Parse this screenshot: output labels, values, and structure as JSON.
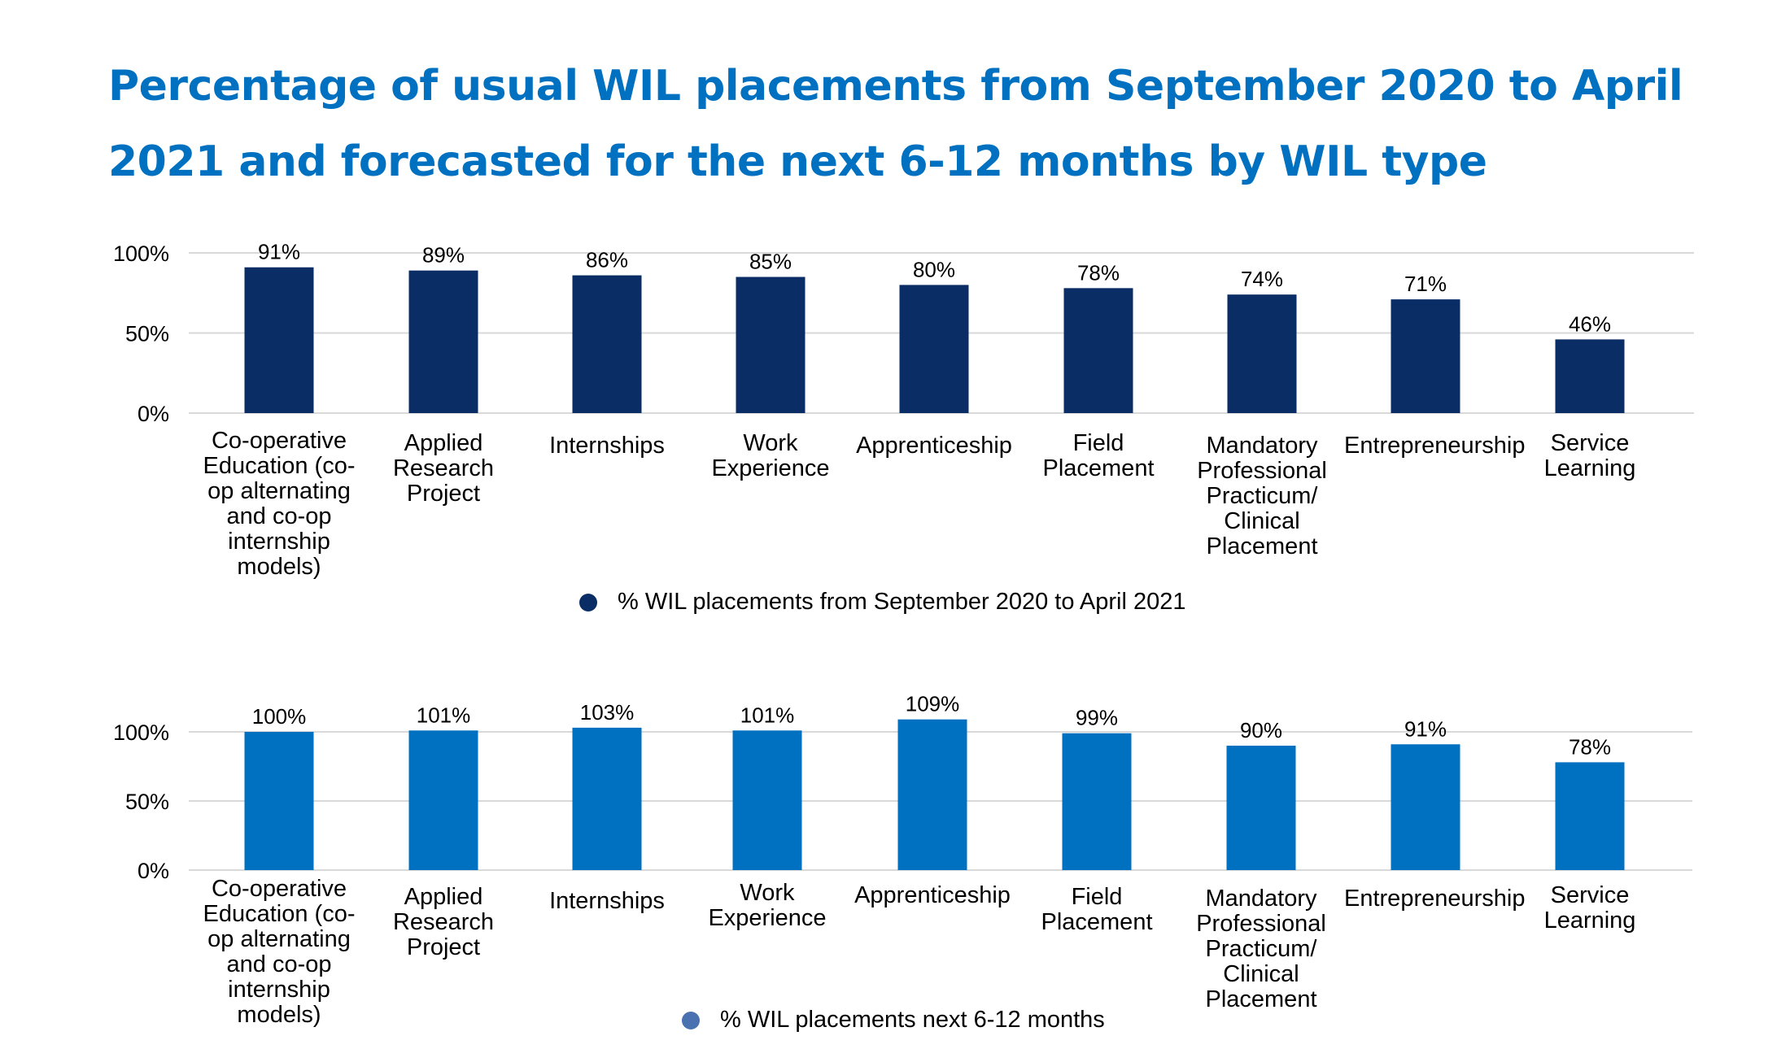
{
  "title": "Percentage   of usual WIL placements from September 2020 to April 2021 and forecasted for the next 6-12 months by WIL type",
  "chart_data": [
    {
      "type": "bar",
      "categories": [
        "Co-operative Education (co-op alternating and co-op internship models)",
        "Applied Research Project",
        "Internships",
        "Work Experience",
        "Apprenticeship",
        "Field Placement",
        "Mandatory Professional Practicum/ Clinical Placement",
        "Entrepreneurship",
        "Service Learning"
      ],
      "values": [
        91,
        89,
        86,
        85,
        80,
        78,
        74,
        71,
        46
      ],
      "data_labels": [
        "91%",
        "89%",
        "86%",
        "85%",
        "80%",
        "78%",
        "74%",
        "71%",
        "46%"
      ],
      "yticks": [
        "0%",
        "50%",
        "100%"
      ],
      "ylim": [
        0,
        100
      ],
      "series_name": "% WIL placements from September 2020 to April 2021",
      "color": "#0b2d66",
      "legend_color": "#0b2d66",
      "legend_position": "bottom"
    },
    {
      "type": "bar",
      "categories": [
        "Co-operative Education (co-op alternating and co-op internship models)",
        "Applied Research Project",
        "Internships",
        "Work Experience",
        "Apprenticeship",
        "Field Placement",
        "Mandatory Professional Practicum/ Clinical Placement",
        "Entrepreneurship",
        "Service Learning"
      ],
      "values": [
        100,
        101,
        103,
        101,
        109,
        99,
        90,
        91,
        78
      ],
      "data_labels": [
        "100%",
        "101%",
        "103%",
        "101%",
        "109%",
        "99%",
        "90%",
        "91%",
        "78%"
      ],
      "yticks": [
        "0%",
        "50%",
        "100%"
      ],
      "ylim": [
        0,
        100
      ],
      "series_name": "% WIL placements next 6-12 months",
      "color": "#0070c0",
      "legend_color": "#4a72b0",
      "legend_position": "bottom"
    }
  ]
}
